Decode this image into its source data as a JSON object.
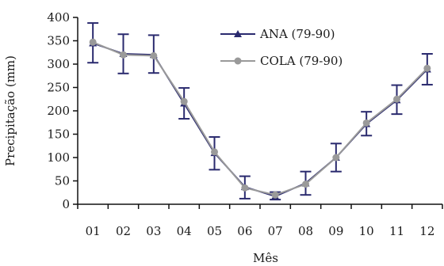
{
  "chart_data": {
    "type": "line",
    "title": "",
    "xlabel": "Mês",
    "ylabel": "Precipitação (mm)",
    "ylim": [
      0,
      400
    ],
    "yticks": [
      0,
      50,
      100,
      150,
      200,
      250,
      300,
      350,
      400
    ],
    "categories": [
      "01",
      "02",
      "03",
      "04",
      "05",
      "06",
      "07",
      "08",
      "09",
      "10",
      "11",
      "12"
    ],
    "grid": false,
    "legend_position": "top-center",
    "series": [
      {
        "name": "ANA (79-90)",
        "marker": "triangle",
        "color": "#2a2a6e",
        "values": [
          345,
          322,
          320,
          216,
          110,
          37,
          17,
          45,
          100,
          172,
          223,
          289
        ],
        "error_low": [
          303,
          280,
          281,
          183,
          74,
          12,
          10,
          20,
          70,
          147,
          193,
          256
        ],
        "error_high": [
          388,
          364,
          362,
          249,
          144,
          60,
          26,
          70,
          130,
          198,
          255,
          322
        ]
      },
      {
        "name": "COLA (79-90)",
        "marker": "circle",
        "color": "#9a9a9a",
        "values": [
          347,
          320,
          318,
          220,
          112,
          35,
          20,
          43,
          100,
          174,
          225,
          291
        ]
      }
    ]
  }
}
